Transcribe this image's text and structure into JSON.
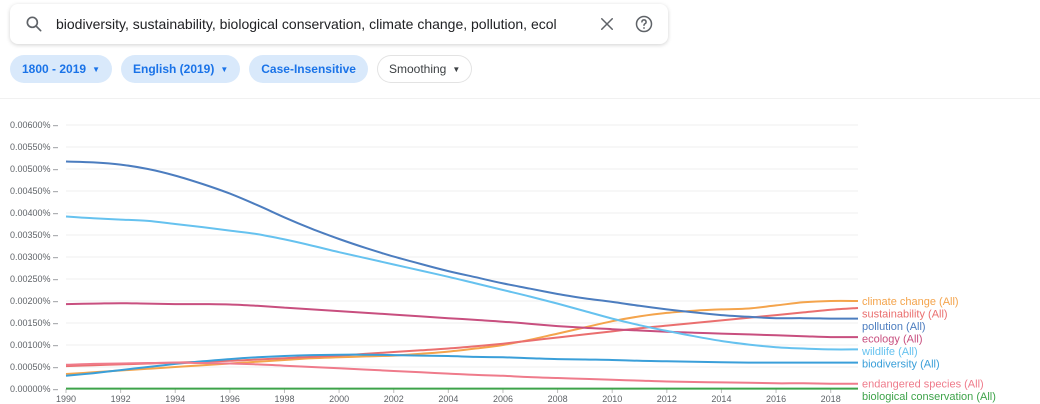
{
  "search": {
    "query": "biodiversity, sustainability, biological conservation, climate change, pollution, ecol"
  },
  "filters": [
    {
      "label": "1800 - 2019",
      "caret": true,
      "active": true
    },
    {
      "label": "English (2019)",
      "caret": true,
      "active": true
    },
    {
      "label": "Case-Insensitive",
      "caret": false,
      "active": true
    },
    {
      "label": "Smoothing",
      "caret": true,
      "active": false
    }
  ],
  "icons": {
    "search": "search-icon",
    "clear": "close-icon",
    "help": "help-icon",
    "dropdown": "caret-down-icon"
  },
  "chart_data": {
    "type": "line",
    "xlim": [
      1990,
      2019
    ],
    "ylim": [
      0,
      0.006
    ],
    "x_ticks": [
      "1990",
      "1992",
      "1994",
      "1996",
      "1998",
      "2000",
      "2002",
      "2004",
      "2006",
      "2008",
      "2010",
      "2012",
      "2014",
      "2016",
      "2018"
    ],
    "y_ticks": [
      "0.00000%",
      "0.00050%",
      "0.00100%",
      "0.00150%",
      "0.00200%",
      "0.00250%",
      "0.00300%",
      "0.00350%",
      "0.00400%",
      "0.00450%",
      "0.00500%",
      "0.00550%",
      "0.00600%"
    ],
    "grid": true,
    "legend": "inline-right",
    "x": [
      1990,
      1991,
      1992,
      1993,
      1994,
      1995,
      1996,
      1997,
      1998,
      1999,
      2000,
      2001,
      2002,
      2003,
      2004,
      2005,
      2006,
      2007,
      2008,
      2009,
      2010,
      2011,
      2012,
      2013,
      2014,
      2015,
      2016,
      2017,
      2018,
      2019
    ],
    "series": [
      {
        "name": "climate change (All)",
        "color": "#f4a44c",
        "values": [
          0.00034,
          0.00038,
          0.00042,
          0.00046,
          0.0005,
          0.00054,
          0.00058,
          0.00062,
          0.00066,
          0.0007,
          0.00072,
          0.00074,
          0.00076,
          0.0008,
          0.00085,
          0.00092,
          0.001,
          0.00112,
          0.00126,
          0.0014,
          0.00154,
          0.00165,
          0.00173,
          0.00178,
          0.00181,
          0.00183,
          0.0019,
          0.00197,
          0.002,
          0.002
        ]
      },
      {
        "name": "sustainability (All)",
        "color": "#ea6f6f",
        "values": [
          0.00052,
          0.00054,
          0.00056,
          0.00058,
          0.0006,
          0.00062,
          0.00064,
          0.00067,
          0.0007,
          0.00073,
          0.00076,
          0.0008,
          0.00084,
          0.00088,
          0.00092,
          0.00097,
          0.00103,
          0.0011,
          0.00117,
          0.00124,
          0.00131,
          0.00138,
          0.00144,
          0.0015,
          0.00156,
          0.00162,
          0.00168,
          0.00174,
          0.0018,
          0.00184
        ]
      },
      {
        "name": "pollution (All)",
        "color": "#4c7dbf",
        "values": [
          0.00517,
          0.00515,
          0.0051,
          0.005,
          0.00485,
          0.00466,
          0.00444,
          0.00418,
          0.0039,
          0.00364,
          0.00341,
          0.0032,
          0.00301,
          0.00284,
          0.00268,
          0.00254,
          0.0024,
          0.00228,
          0.00216,
          0.00206,
          0.00198,
          0.00189,
          0.00181,
          0.00174,
          0.00168,
          0.00164,
          0.00161,
          0.00161,
          0.0016,
          0.0016
        ]
      },
      {
        "name": "ecology (All)",
        "color": "#c84f7f",
        "values": [
          0.00193,
          0.00194,
          0.00195,
          0.00194,
          0.00193,
          0.00193,
          0.00192,
          0.00189,
          0.00185,
          0.00181,
          0.00177,
          0.00173,
          0.00169,
          0.00165,
          0.00161,
          0.00157,
          0.00153,
          0.00148,
          0.00143,
          0.00139,
          0.00136,
          0.00133,
          0.0013,
          0.00128,
          0.00126,
          0.00124,
          0.00122,
          0.0012,
          0.00118,
          0.00118
        ]
      },
      {
        "name": "wildlife (All)",
        "color": "#66c2ef",
        "values": [
          0.00392,
          0.00388,
          0.00385,
          0.00382,
          0.00375,
          0.00368,
          0.0036,
          0.00352,
          0.0034,
          0.00326,
          0.00311,
          0.00297,
          0.00283,
          0.00269,
          0.00255,
          0.0024,
          0.00225,
          0.0021,
          0.00194,
          0.00177,
          0.0016,
          0.00145,
          0.00132,
          0.0012,
          0.00109,
          0.00101,
          0.00095,
          0.00092,
          0.0009,
          0.0009
        ]
      },
      {
        "name": "biodiversity (All)",
        "color": "#3a9fd9",
        "values": [
          0.0003,
          0.00036,
          0.00043,
          0.0005,
          0.00057,
          0.00063,
          0.00068,
          0.00072,
          0.00075,
          0.00077,
          0.00078,
          0.00078,
          0.00077,
          0.00076,
          0.00075,
          0.00073,
          0.00072,
          0.0007,
          0.00068,
          0.00067,
          0.00066,
          0.00064,
          0.00063,
          0.00062,
          0.00061,
          0.0006,
          0.0006,
          0.0006,
          0.0006,
          0.0006
        ]
      },
      {
        "name": "endangered species (All)",
        "color": "#ef7b8b",
        "values": [
          0.00055,
          0.00057,
          0.00058,
          0.00059,
          0.0006,
          0.00059,
          0.00058,
          0.00056,
          0.00053,
          0.0005,
          0.00047,
          0.00044,
          0.00041,
          0.00038,
          0.00035,
          0.00032,
          0.0003,
          0.00027,
          0.00025,
          0.00023,
          0.00021,
          0.00019,
          0.00017,
          0.00016,
          0.00015,
          0.00014,
          0.00013,
          0.00013,
          0.00012,
          0.00012
        ]
      },
      {
        "name": "biological conservation (All)",
        "color": "#3ea34a",
        "values": [
          1e-05,
          1e-05,
          1e-05,
          1e-05,
          1e-05,
          1e-05,
          1e-05,
          1e-05,
          1e-05,
          1e-05,
          1e-05,
          1e-05,
          1e-05,
          1e-05,
          1e-05,
          1e-05,
          1e-05,
          1e-05,
          1e-05,
          1e-05,
          1e-05,
          1e-05,
          1e-05,
          1e-05,
          1e-05,
          1e-05,
          1e-05,
          1e-05,
          1e-05,
          1e-05
        ]
      }
    ]
  }
}
